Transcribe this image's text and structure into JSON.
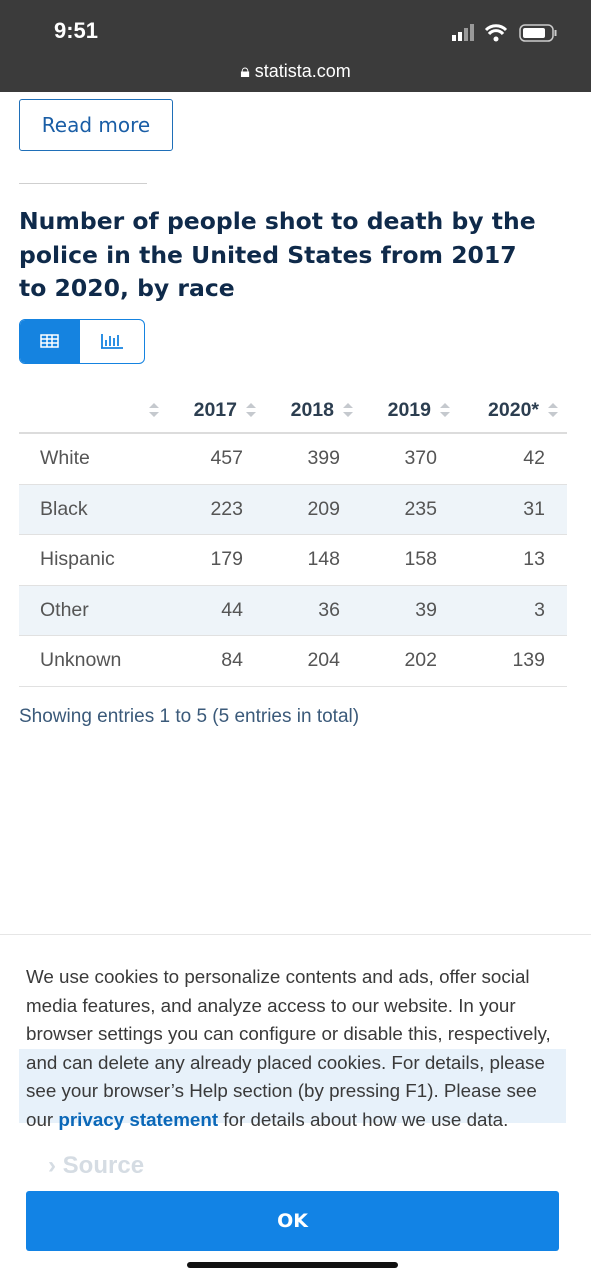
{
  "status_bar": {
    "time": "9:51",
    "url": "statista.com"
  },
  "read_more": "Read more",
  "title": "Number of people shot to death by the police in the United States from 2017 to 2020, by race",
  "table": {
    "columns": [
      "2017",
      "2018",
      "2019",
      "2020*"
    ],
    "rows": [
      [
        "White",
        457,
        399,
        370,
        42
      ],
      [
        "Black",
        223,
        209,
        235,
        31
      ],
      [
        "Hispanic",
        179,
        148,
        158,
        13
      ],
      [
        "Other",
        44,
        36,
        39,
        3
      ],
      [
        "Unknown",
        84,
        204,
        202,
        139
      ]
    ]
  },
  "footer": "Showing entries 1 to 5 (5 entries in total)",
  "background_link": "Source",
  "cookie": {
    "text_before": "We use cookies to personalize contents and ads, offer social media features, and analyze access to our website. In your browser settings you can configure or disable this, respectively, and can delete any already placed cookies. For details, please see your browser’s Help section (by pressing F1). Please see our ",
    "link": "privacy statement",
    "text_after": " for details about how we use data.",
    "button": "OK"
  }
}
